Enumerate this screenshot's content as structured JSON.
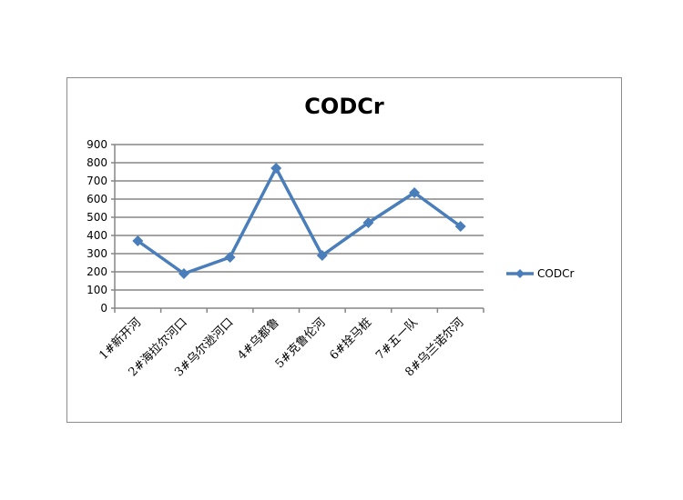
{
  "chart_data": {
    "type": "line",
    "title": "CODCr",
    "xlabel": "",
    "ylabel": "",
    "ylim": [
      0,
      900
    ],
    "yticks": [
      0,
      100,
      200,
      300,
      400,
      500,
      600,
      700,
      800,
      900
    ],
    "grid": true,
    "legend_position": "right",
    "categories": [
      "1#新开河",
      "2#海拉尔河口",
      "3#乌尔逊河口",
      "4#乌都鲁",
      "5#克鲁伦河",
      "6#拴马桩",
      "7#五一队",
      "8#乌兰诺尔河"
    ],
    "series": [
      {
        "name": "CODCr",
        "color": "#4a7ebb",
        "marker": "diamond",
        "values": [
          370,
          190,
          280,
          770,
          290,
          470,
          635,
          450
        ]
      }
    ]
  }
}
